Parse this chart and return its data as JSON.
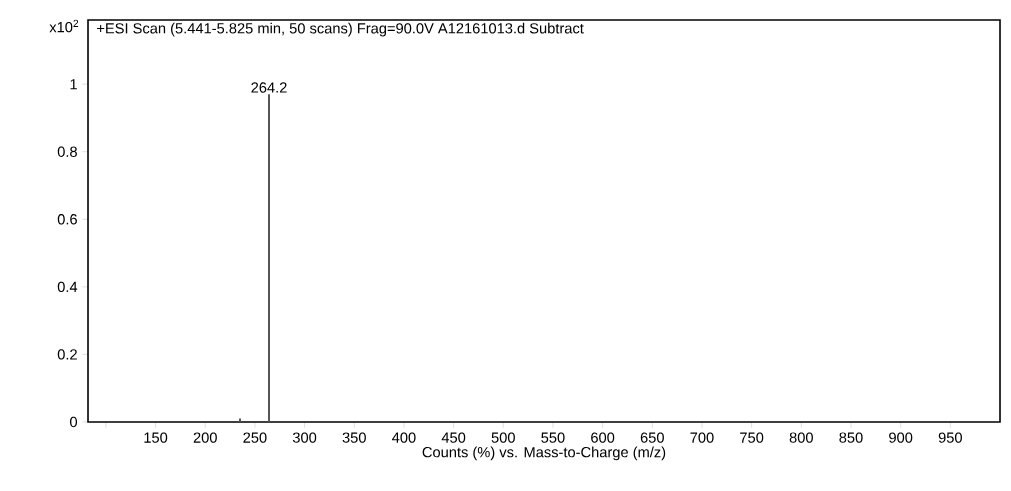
{
  "chart_data": {
    "type": "bar",
    "title": "+ESI Scan (5.441-5.825 min, 50 scans) Frag=90.0V A12161013.d  Subtract",
    "xlabel": "Counts (%) vs. Mass-to-Charge (m/z)",
    "ylabel": "x10$^{2}$",
    "x": [
      235,
      264.2
    ],
    "values": [
      0.01,
      0.97
    ],
    "color": "#555555",
    "annotations": [
      {
        "text": "264.2",
        "x": 264.2,
        "y": 0.97
      }
    ],
    "xlim": [
      82,
      1000
    ],
    "ylim": [
      0,
      1.19
    ],
    "xticks": [
      {
        "value": 100,
        "label": null
      },
      150,
      200,
      250,
      300,
      350,
      400,
      450,
      500,
      550,
      600,
      650,
      700,
      750,
      800,
      850,
      900,
      950
    ],
    "yticks": [
      0,
      0.2,
      0.4,
      0.6,
      0.8,
      1
    ]
  }
}
